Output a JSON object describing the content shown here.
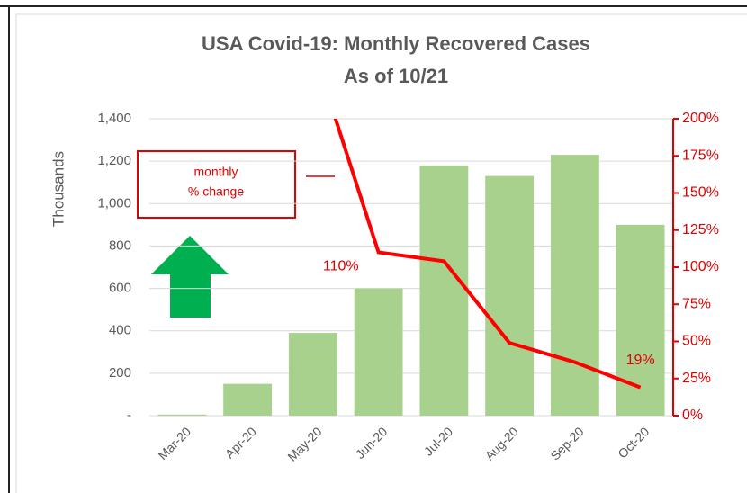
{
  "chart_data": {
    "type": "bar-line",
    "title": "USA Covid-19: Monthly Recovered Cases",
    "subtitle": "As of 10/21",
    "ylabel": "Thousands",
    "annotation": [
      "monthly",
      "% change"
    ],
    "categories": [
      "Mar-20",
      "Apr-20",
      "May-20",
      "Jun-20",
      "Jul-20",
      "Aug-20",
      "Sep-20",
      "Oct-20"
    ],
    "series": [
      {
        "name": "Recovered",
        "type": "bar",
        "color": "#a9d18e",
        "values": [
          5,
          150,
          390,
          600,
          1180,
          1130,
          1230,
          900
        ]
      },
      {
        "name": "Monthly % change",
        "type": "line",
        "axis": "y2",
        "color": "#ff0000",
        "values": [
          null,
          null,
          247,
          110,
          104,
          49,
          36,
          19
        ],
        "value_labels": [
          null,
          null,
          null,
          "110%",
          null,
          null,
          null,
          "19%"
        ]
      }
    ],
    "ylim": [
      0,
      1400
    ],
    "yticks": [
      {
        "value": 0,
        "label": "-"
      },
      200,
      400,
      600,
      800,
      {
        "value": 1000,
        "label": "1,000"
      },
      {
        "value": 1200,
        "label": "1,200"
      },
      {
        "value": 1400,
        "label": "1,400"
      }
    ],
    "y2lim": [
      0,
      200
    ],
    "y2ticks": [
      {
        "value": 0,
        "label": "0%"
      },
      {
        "value": 25,
        "label": "25%"
      },
      {
        "value": 50,
        "label": "50%"
      },
      {
        "value": 75,
        "label": "75%"
      },
      {
        "value": 100,
        "label": "100%"
      },
      {
        "value": 125,
        "label": "125%"
      },
      {
        "value": 150,
        "label": "150%"
      },
      {
        "value": 175,
        "label": "175%"
      },
      {
        "value": 200,
        "label": "200%"
      }
    ],
    "grid": true
  }
}
